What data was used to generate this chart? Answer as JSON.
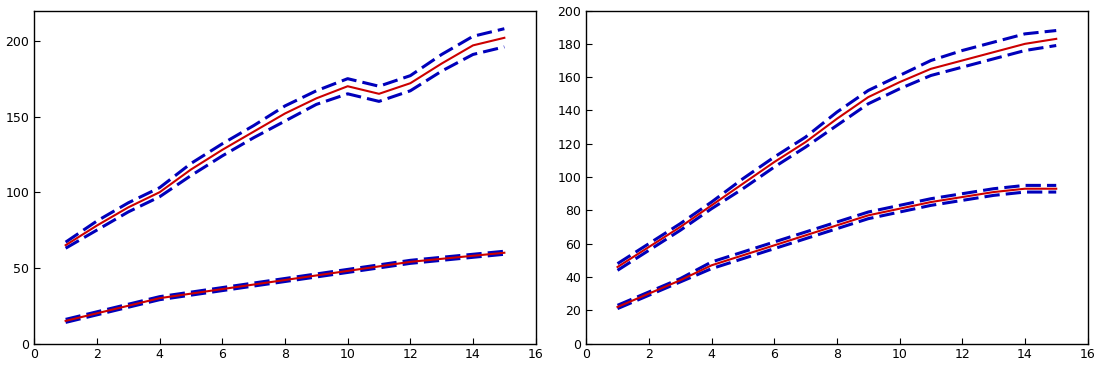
{
  "left": {
    "xlim": [
      0,
      16
    ],
    "ylim": [
      0,
      220
    ],
    "yticks": [
      0,
      50,
      100,
      150,
      200
    ],
    "xticks": [
      0,
      2,
      4,
      6,
      8,
      10,
      12,
      14,
      16
    ],
    "series1_mean": [
      65,
      78,
      90,
      100,
      115,
      128,
      140,
      152,
      162,
      170,
      165,
      172,
      185,
      197,
      202
    ],
    "series1_ci_lo": [
      63,
      75,
      87,
      97,
      111,
      124,
      136,
      147,
      158,
      165,
      160,
      167,
      180,
      191,
      196
    ],
    "series1_ci_hi": [
      67,
      81,
      93,
      103,
      119,
      132,
      144,
      157,
      167,
      175,
      170,
      177,
      191,
      203,
      208
    ],
    "series2_mean": [
      15,
      20,
      25,
      30,
      33,
      36,
      39,
      42,
      45,
      48,
      51,
      54,
      56,
      58,
      60
    ],
    "series2_ci_lo": [
      14,
      19,
      24,
      29,
      32,
      35,
      38,
      41,
      44,
      47,
      50,
      53,
      55,
      57,
      59
    ],
    "series2_ci_hi": [
      16,
      21,
      26,
      31,
      34,
      37,
      40,
      43,
      46,
      49,
      52,
      55,
      57,
      59,
      61
    ]
  },
  "right": {
    "xlim": [
      0,
      16
    ],
    "ylim": [
      0,
      200
    ],
    "yticks": [
      0,
      20,
      40,
      60,
      80,
      100,
      120,
      140,
      160,
      180,
      200
    ],
    "xticks": [
      0,
      2,
      4,
      6,
      8,
      10,
      12,
      14,
      16
    ],
    "series1_mean": [
      46,
      58,
      70,
      83,
      96,
      109,
      121,
      135,
      148,
      157,
      165,
      170,
      175,
      180,
      183
    ],
    "series1_ci_lo": [
      44,
      56,
      68,
      81,
      93,
      106,
      118,
      131,
      144,
      153,
      161,
      166,
      171,
      176,
      179
    ],
    "series1_ci_hi": [
      48,
      60,
      72,
      85,
      99,
      112,
      124,
      139,
      152,
      161,
      170,
      176,
      181,
      186,
      188
    ],
    "series2_mean": [
      22,
      30,
      38,
      47,
      53,
      59,
      65,
      71,
      77,
      81,
      85,
      88,
      91,
      93,
      93
    ],
    "series2_ci_lo": [
      21,
      29,
      37,
      45,
      51,
      57,
      63,
      69,
      75,
      79,
      83,
      86,
      89,
      91,
      91
    ],
    "series2_ci_hi": [
      23,
      31,
      39,
      49,
      55,
      61,
      67,
      73,
      79,
      83,
      87,
      90,
      93,
      95,
      95
    ]
  },
  "mean_color": "#cc0000",
  "ci_color": "#0000bb",
  "mean_lw": 1.5,
  "ci_lw": 2.2,
  "ci_dash_on": 5,
  "ci_dash_off": 2
}
